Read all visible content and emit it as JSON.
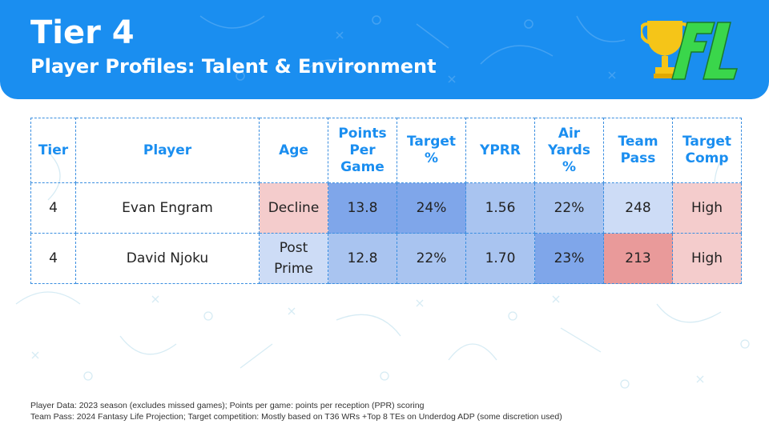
{
  "header": {
    "title": "Tier 4",
    "subtitle": "Player Profiles: Talent & Environment",
    "logo_text": "FL"
  },
  "table": {
    "columns": [
      "Tier",
      "Player",
      "Age",
      "Points Per Game",
      "Target %",
      "YPRR",
      "Air Yards %",
      "Team Pass",
      "Target Comp"
    ],
    "rows": [
      {
        "tier": "4",
        "player": "Evan Engram",
        "age": "Decline",
        "ppg": "13.8",
        "target_pct": "24%",
        "yprr": "1.56",
        "air_yards_pct": "22%",
        "team_pass": "248",
        "target_comp": "High"
      },
      {
        "tier": "4",
        "player": "David Njoku",
        "age": "Post Prime",
        "ppg": "12.8",
        "target_pct": "22%",
        "yprr": "1.70",
        "air_yards_pct": "23%",
        "team_pass": "213",
        "target_comp": "High"
      }
    ]
  },
  "colors": {
    "header_blue": "#1a8ef0",
    "cell_blue_light": "#cddcf6",
    "cell_blue_mid": "#a9c4f0",
    "cell_blue_dark": "#7fa6ea",
    "cell_red_light": "#f4cccc",
    "cell_red_dark": "#e99a9a",
    "logo_yellow": "#f5c518",
    "logo_green": "#3ad64b"
  },
  "footnotes": [
    "Player Data: 2023 season (excludes missed games); Points per game: points per reception (PPR) scoring",
    "Team Pass: 2024 Fantasy Life Projection; Target competition: Mostly based on T36 WRs +Top 8 TEs on Underdog ADP (some discretion used)"
  ]
}
